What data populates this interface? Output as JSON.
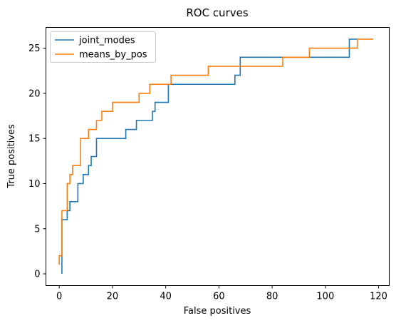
{
  "chart_data": {
    "type": "line",
    "title": "ROC curves",
    "xlabel": "False positives",
    "ylabel": "True positives",
    "xlim": [
      -5,
      124
    ],
    "ylim": [
      -1.3,
      27.3
    ],
    "xticks": [
      0,
      20,
      40,
      60,
      80,
      100,
      120
    ],
    "yticks": [
      0,
      5,
      10,
      15,
      20,
      25
    ],
    "grid": false,
    "legend_position": "top-left",
    "series": [
      {
        "name": "joint_modes",
        "color": "#1f77b4",
        "step": true,
        "points": [
          [
            1,
            0
          ],
          [
            1,
            6
          ],
          [
            3,
            6
          ],
          [
            3,
            7
          ],
          [
            4,
            7
          ],
          [
            4,
            8
          ],
          [
            7,
            8
          ],
          [
            7,
            10
          ],
          [
            9,
            10
          ],
          [
            9,
            11
          ],
          [
            11,
            11
          ],
          [
            11,
            12
          ],
          [
            12,
            12
          ],
          [
            12,
            13
          ],
          [
            14,
            13
          ],
          [
            14,
            15
          ],
          [
            25,
            15
          ],
          [
            25,
            16
          ],
          [
            29,
            16
          ],
          [
            29,
            17
          ],
          [
            35,
            17
          ],
          [
            35,
            18
          ],
          [
            36,
            18
          ],
          [
            36,
            19
          ],
          [
            41,
            19
          ],
          [
            41,
            21
          ],
          [
            66,
            21
          ],
          [
            66,
            22
          ],
          [
            68,
            22
          ],
          [
            68,
            24
          ],
          [
            84,
            24
          ],
          [
            84,
            24
          ],
          [
            109,
            24
          ],
          [
            109,
            26
          ],
          [
            112,
            26
          ]
        ]
      },
      {
        "name": "means_by_pos",
        "color": "#ff7f0e",
        "step": true,
        "points": [
          [
            0,
            1
          ],
          [
            0,
            2
          ],
          [
            1,
            2
          ],
          [
            1,
            7
          ],
          [
            3,
            7
          ],
          [
            3,
            10
          ],
          [
            4,
            10
          ],
          [
            4,
            11
          ],
          [
            5,
            11
          ],
          [
            5,
            12
          ],
          [
            8,
            12
          ],
          [
            8,
            15
          ],
          [
            11,
            15
          ],
          [
            11,
            16
          ],
          [
            14,
            16
          ],
          [
            14,
            17
          ],
          [
            16,
            17
          ],
          [
            16,
            18
          ],
          [
            20,
            18
          ],
          [
            20,
            19
          ],
          [
            30,
            19
          ],
          [
            30,
            20
          ],
          [
            34,
            20
          ],
          [
            34,
            21
          ],
          [
            42,
            21
          ],
          [
            42,
            22
          ],
          [
            56,
            22
          ],
          [
            56,
            23
          ],
          [
            84,
            23
          ],
          [
            84,
            24
          ],
          [
            94,
            24
          ],
          [
            94,
            25
          ],
          [
            112,
            25
          ],
          [
            112,
            26
          ],
          [
            118,
            26
          ]
        ]
      }
    ]
  }
}
